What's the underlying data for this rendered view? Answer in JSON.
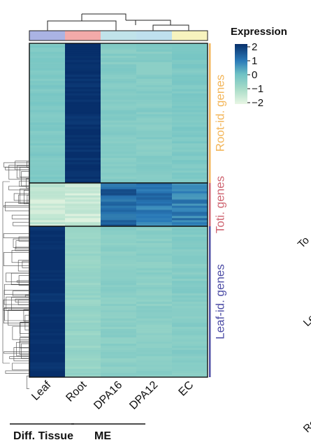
{
  "chart_data": {
    "type": "heatmap",
    "columns": [
      "Leaf",
      "Root",
      "DPA16",
      "DPA12",
      "EC"
    ],
    "column_groups": [
      {
        "label": "Diff. Tissue",
        "columns": [
          "Leaf",
          "Root"
        ]
      },
      {
        "label": "ME",
        "columns": [
          "DPA16",
          "DPA12",
          "EC"
        ]
      }
    ],
    "column_annotation_colors": [
      "#aab3e3",
      "#f3aaa9",
      "#c1e3ea",
      "#bfe0ee",
      "#f7f3be"
    ],
    "row_clusters": [
      {
        "label": "Root-id. genes",
        "color": "#f3b65a",
        "values": [
          -0.3,
          2.0,
          -0.4,
          -0.4,
          -0.3
        ]
      },
      {
        "label": "Toti. genes",
        "color": "#cf6672",
        "values": [
          -1.5,
          -1.6,
          1.3,
          1.0,
          0.9
        ]
      },
      {
        "label": "Leaf-id. genes",
        "color": "#4e4ea6",
        "values": [
          2.0,
          -0.7,
          -0.5,
          -0.5,
          -0.4
        ]
      }
    ],
    "legend": {
      "title": "Expression",
      "ticks": [
        "2",
        "1",
        "0",
        "−1",
        "−2"
      ],
      "tick_values": [
        2,
        1,
        0,
        -1,
        -2
      ],
      "colors": [
        "#08306b",
        "#2a7ab8",
        "#6ec1c4",
        "#a8dcc8",
        "#e9f6e4"
      ],
      "placement": "top-right"
    },
    "other_labels": [
      "To",
      "Leaf-",
      "Root-i"
    ]
  }
}
